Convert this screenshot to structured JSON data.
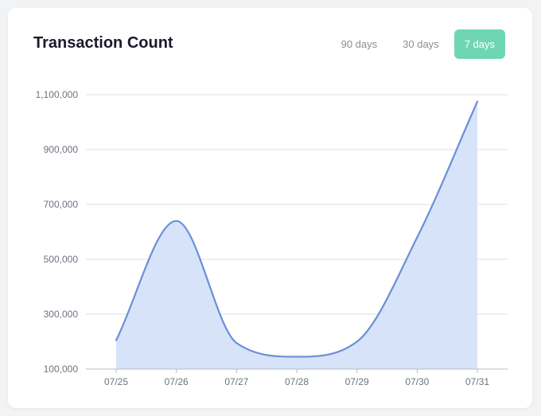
{
  "title": "Transaction Count",
  "range_tabs": [
    {
      "label": "90 days",
      "active": false
    },
    {
      "label": "30 days",
      "active": false
    },
    {
      "label": "7 days",
      "active": true
    }
  ],
  "colors": {
    "line": "#6a8fd8",
    "area": "#d7e3f8",
    "grid": "#dcdfe4",
    "active_tab": "#6fd6b3"
  },
  "chart_data": {
    "type": "area",
    "title": "Transaction Count",
    "categories": [
      "07/25",
      "07/26",
      "07/27",
      "07/28",
      "07/29",
      "07/30",
      "07/31"
    ],
    "series": [
      {
        "values": [
          205000,
          640000,
          195000,
          145000,
          200000,
          580000,
          1075000
        ]
      }
    ],
    "yticks": [
      100000,
      300000,
      500000,
      700000,
      900000,
      1100000
    ],
    "ytick_labels": [
      "100,000",
      "300,000",
      "500,000",
      "700,000",
      "900,000",
      "1,100,000"
    ],
    "ylim": [
      100000,
      1100000
    ],
    "grid": true,
    "legend": "none"
  }
}
